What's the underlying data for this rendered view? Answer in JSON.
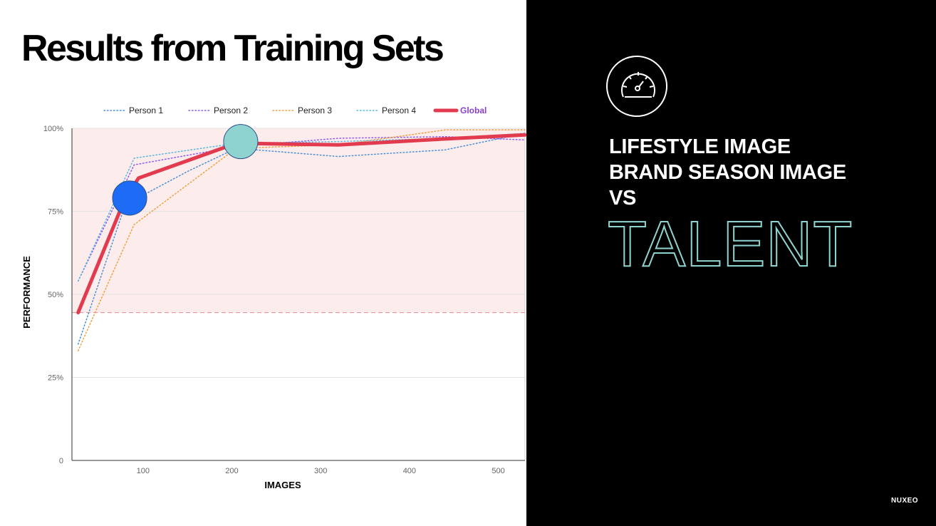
{
  "slide": {
    "title": "Results from Training Sets",
    "headline_lines": [
      "LIFESTYLE IMAGE",
      "BRAND SEASON IMAGE",
      "VS"
    ],
    "highlight_word": "TALENT",
    "logo_text": "NUXEO",
    "badge_icon": "speedometer-icon"
  },
  "colors": {
    "accent_cyan": "#8fd3d1",
    "global_line": "#e23a4f",
    "band_fill": "#fdecec",
    "marker_blue": "#1e6cf5",
    "marker_teal": "#8fd3d1"
  },
  "chart_data": {
    "type": "line",
    "title": "",
    "xlabel": "IMAGES",
    "ylabel": "PERFORMANCE",
    "xlim": [
      20,
      530
    ],
    "ylim": [
      0,
      100
    ],
    "x_ticks": [
      100,
      200,
      300,
      400,
      500
    ],
    "y_ticks": [
      {
        "value": 0,
        "label": "0"
      },
      {
        "value": 25,
        "label": "25%"
      },
      {
        "value": 50,
        "label": "50%"
      },
      {
        "value": 75,
        "label": "75%"
      },
      {
        "value": 100,
        "label": "100%"
      }
    ],
    "legend_position": "top",
    "highlight_band": {
      "from": 44.5,
      "to": 100
    },
    "baseline": 44.5,
    "series": [
      {
        "name": "Person 1",
        "color": "#4a90d9",
        "style": "dotted",
        "points": [
          [
            27,
            35
          ],
          [
            80,
            77
          ],
          [
            150,
            87
          ],
          [
            205,
            94
          ],
          [
            320,
            91.5
          ],
          [
            440,
            93.5
          ],
          [
            530,
            98.5
          ]
        ]
      },
      {
        "name": "Person 2",
        "color": "#8a5cf0",
        "style": "dotted",
        "points": [
          [
            27,
            54
          ],
          [
            90,
            89
          ],
          [
            205,
            94.5
          ],
          [
            320,
            97
          ],
          [
            440,
            97.5
          ],
          [
            530,
            96.5
          ]
        ]
      },
      {
        "name": "Person 3",
        "color": "#f0a040",
        "style": "dotted",
        "points": [
          [
            27,
            33
          ],
          [
            90,
            71
          ],
          [
            205,
            94
          ],
          [
            320,
            95
          ],
          [
            440,
            99.5
          ],
          [
            530,
            99.5
          ]
        ]
      },
      {
        "name": "Person 4",
        "color": "#5ab8e0",
        "style": "dotted",
        "points": [
          [
            27,
            54
          ],
          [
            90,
            91
          ],
          [
            205,
            95.5
          ],
          [
            320,
            96
          ],
          [
            440,
            97
          ],
          [
            530,
            98.5
          ]
        ]
      },
      {
        "name": "Global",
        "color": "#e23a4f",
        "style": "solid",
        "points": [
          [
            27,
            44.5
          ],
          [
            80,
            79
          ],
          [
            95,
            85
          ],
          [
            205,
            95.5
          ],
          [
            320,
            95
          ],
          [
            440,
            96.8
          ],
          [
            530,
            98
          ]
        ]
      }
    ],
    "markers": [
      {
        "x": 85,
        "y": 79,
        "color": "#1e6cf5"
      },
      {
        "x": 210,
        "y": 96,
        "color": "#8fd3d1"
      }
    ]
  }
}
